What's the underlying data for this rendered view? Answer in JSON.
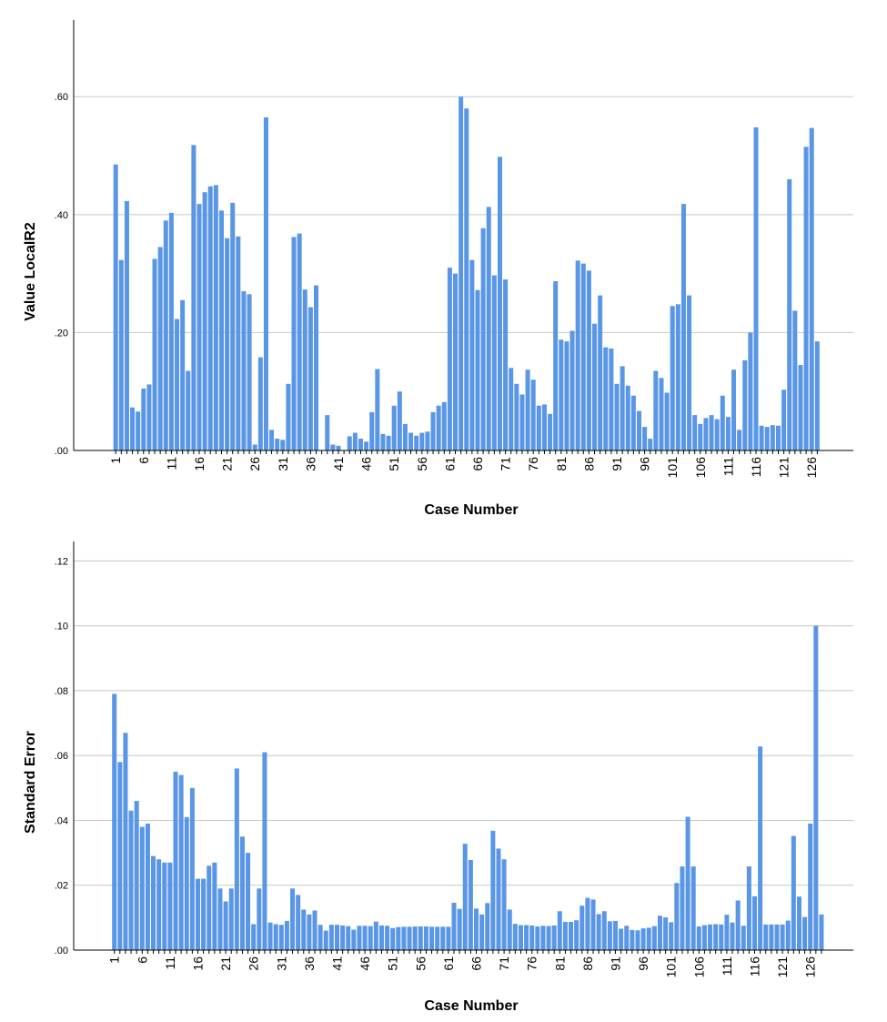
{
  "chart_data": [
    {
      "type": "bar",
      "xlabel": "Case Number",
      "ylabel": "Value LocalR2",
      "ylim": [
        0,
        0.73
      ],
      "yticks": [
        0,
        0.2,
        0.4,
        0.6
      ],
      "ytick_labels": [
        ".00",
        ".20",
        ".40",
        ".60"
      ],
      "grid": true,
      "color": "#5a96e6",
      "x_start": 1,
      "xtick_every": 5,
      "xtick_labels": [
        "1",
        "6",
        "11",
        "16",
        "21",
        "26",
        "31",
        "36",
        "41",
        "46",
        "51",
        "56",
        "61",
        "66",
        "71",
        "76",
        "81",
        "86",
        "91",
        "96",
        "101",
        "106",
        "111",
        "116",
        "121",
        "126"
      ],
      "values": [
        0.485,
        0.323,
        0.423,
        0.073,
        0.066,
        0.105,
        0.112,
        0.325,
        0.345,
        0.39,
        0.403,
        0.223,
        0.255,
        0.135,
        0.518,
        0.418,
        0.438,
        0.448,
        0.45,
        0.407,
        0.36,
        0.42,
        0.363,
        0.27,
        0.265,
        0.01,
        0.158,
        0.565,
        0.035,
        0.02,
        0.018,
        0.113,
        0.362,
        0.368,
        0.273,
        0.243,
        0.28,
        0,
        0.06,
        0.01,
        0.008,
        0,
        0.024,
        0.03,
        0.02,
        0.015,
        0.065,
        0.138,
        0.028,
        0.025,
        0.076,
        0.1,
        0.045,
        0.03,
        0.025,
        0.03,
        0.032,
        0.065,
        0.076,
        0.082,
        0.31,
        0.3,
        0.6,
        0.58,
        0.323,
        0.272,
        0.377,
        0.413,
        0.297,
        0.498,
        0.29,
        0.14,
        0.113,
        0.095,
        0.137,
        0.12,
        0.076,
        0.078,
        0.062,
        0.287,
        0.188,
        0.185,
        0.203,
        0.322,
        0.317,
        0.305,
        0.215,
        0.263,
        0.175,
        0.173,
        0.113,
        0.143,
        0.11,
        0.093,
        0.067,
        0.04,
        0.02,
        0.135,
        0.123,
        0.098,
        0.245,
        0.248,
        0.418,
        0.263,
        0.06,
        0.045,
        0.055,
        0.06,
        0.053,
        0.093,
        0.057,
        0.137,
        0.035,
        0.153,
        0.2,
        0.548,
        0.042,
        0.04,
        0.043,
        0.042,
        0.103,
        0.46,
        0.237,
        0.145,
        0.515,
        0.547,
        0.185
      ]
    },
    {
      "type": "bar",
      "xlabel": "Case Number",
      "ylabel": "Standard Error",
      "ylim": [
        0,
        0.126
      ],
      "yticks": [
        0,
        0.02,
        0.04,
        0.06,
        0.08,
        0.1,
        0.12
      ],
      "ytick_labels": [
        ".00",
        ".02",
        ".04",
        ".06",
        ".08",
        ".10",
        ".12"
      ],
      "grid": true,
      "color": "#5a96e6",
      "x_start": 1,
      "xtick_every": 5,
      "xtick_labels": [
        "1",
        "6",
        "11",
        "16",
        "21",
        "26",
        "31",
        "36",
        "41",
        "46",
        "51",
        "56",
        "61",
        "66",
        "71",
        "76",
        "81",
        "86",
        "91",
        "96",
        "101",
        "106",
        "111",
        "116",
        "121",
        "126"
      ],
      "values": [
        0.079,
        0.058,
        0.067,
        0.043,
        0.046,
        0.038,
        0.039,
        0.029,
        0.028,
        0.027,
        0.027,
        0.055,
        0.054,
        0.041,
        0.05,
        0.022,
        0.022,
        0.026,
        0.027,
        0.019,
        0.015,
        0.019,
        0.056,
        0.035,
        0.03,
        0.008,
        0.019,
        0.061,
        0.0085,
        0.008,
        0.0078,
        0.009,
        0.019,
        0.017,
        0.0125,
        0.011,
        0.0122,
        0.0078,
        0.006,
        0.0078,
        0.0078,
        0.0076,
        0.0074,
        0.0063,
        0.0075,
        0.0075,
        0.0074,
        0.0088,
        0.0076,
        0.0075,
        0.0068,
        0.0071,
        0.0072,
        0.0072,
        0.0073,
        0.0073,
        0.0073,
        0.0072,
        0.0072,
        0.0072,
        0.0072,
        0.0146,
        0.0127,
        0.0328,
        0.0278,
        0.0128,
        0.011,
        0.0145,
        0.0368,
        0.0313,
        0.028,
        0.0125,
        0.0081,
        0.0077,
        0.0077,
        0.0076,
        0.0073,
        0.0075,
        0.0074,
        0.0076,
        0.012,
        0.0087,
        0.0087,
        0.0092,
        0.0137,
        0.0161,
        0.0156,
        0.0111,
        0.012,
        0.0089,
        0.009,
        0.0066,
        0.0075,
        0.0062,
        0.0061,
        0.0067,
        0.0069,
        0.0074,
        0.0106,
        0.0101,
        0.0086,
        0.0207,
        0.0258,
        0.0411,
        0.0258,
        0.0073,
        0.0077,
        0.0079,
        0.008,
        0.0079,
        0.0109,
        0.0085,
        0.0153,
        0.0075,
        0.0258,
        0.0166,
        0.0628,
        0.0079,
        0.0079,
        0.0079,
        0.0079,
        0.0091,
        0.0352,
        0.0165,
        0.0102,
        0.039,
        0.1,
        0.011
      ]
    }
  ]
}
